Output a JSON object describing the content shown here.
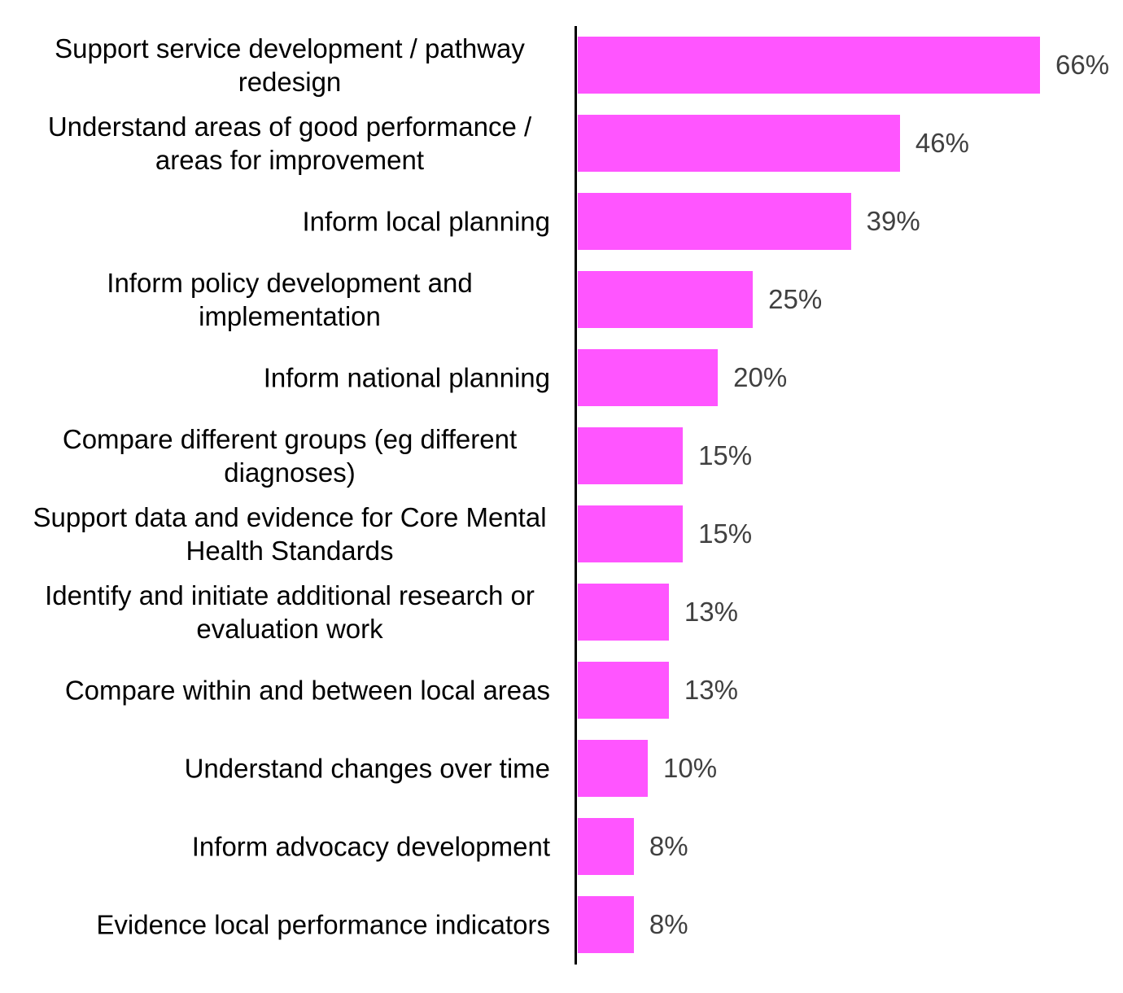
{
  "chart_data": {
    "type": "bar",
    "orientation": "horizontal",
    "categories": [
      "Support service development / pathway redesign",
      "Understand areas of good performance / areas for improvement",
      "Inform local planning",
      "Inform policy development and implementation",
      "Inform national planning",
      "Compare different groups (eg different diagnoses)",
      "Support data and evidence for Core Mental Health Standards",
      "Identify and initiate additional research or evaluation work",
      "Compare within and between local areas",
      "Understand changes over time",
      "Inform advocacy development",
      "Evidence local performance indicators"
    ],
    "values": [
      66,
      46,
      39,
      25,
      20,
      15,
      15,
      13,
      13,
      10,
      8,
      8
    ],
    "value_labels": [
      "66%",
      "46%",
      "39%",
      "25%",
      "20%",
      "15%",
      "15%",
      "13%",
      "13%",
      "10%",
      "8%",
      "8%"
    ],
    "color": "#ff55ff"
  }
}
